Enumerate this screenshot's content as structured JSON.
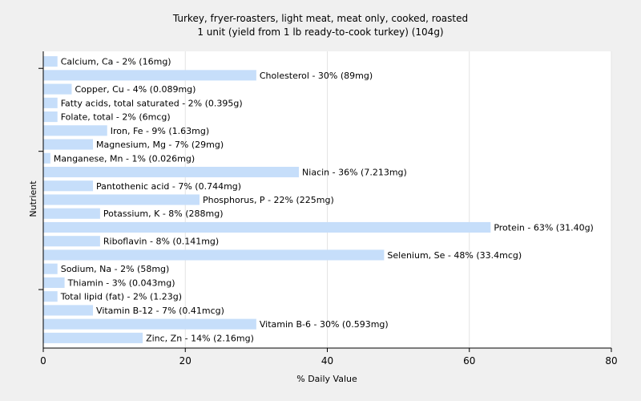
{
  "chart_data": {
    "type": "bar",
    "orientation": "horizontal",
    "title": "Turkey, fryer-roasters, light meat, meat only, cooked, roasted",
    "subtitle": "1 unit (yield from 1 lb ready-to-cook turkey) (104g)",
    "xlabel": "% Daily Value",
    "ylabel": "Nutrient",
    "xlim": [
      0,
      80
    ],
    "xticks": [
      0,
      20,
      40,
      60,
      80
    ],
    "grid": true,
    "bar_color": "#c6defa",
    "categories": [
      "Calcium, Ca",
      "Cholesterol",
      "Copper, Cu",
      "Fatty acids, total saturated",
      "Folate, total",
      "Iron, Fe",
      "Magnesium, Mg",
      "Manganese, Mn",
      "Niacin",
      "Pantothenic acid",
      "Phosphorus, P",
      "Potassium, K",
      "Protein",
      "Riboflavin",
      "Selenium, Se",
      "Sodium, Na",
      "Thiamin",
      "Total lipid (fat)",
      "Vitamin B-12",
      "Vitamin B-6",
      "Zinc, Zn"
    ],
    "values": [
      2,
      30,
      4,
      2,
      2,
      9,
      7,
      1,
      36,
      7,
      22,
      8,
      63,
      8,
      48,
      2,
      3,
      2,
      7,
      30,
      14
    ],
    "labels": [
      "Calcium, Ca - 2% (16mg)",
      "Cholesterol - 30% (89mg)",
      "Copper, Cu - 4% (0.089mg)",
      "Fatty acids, total saturated - 2% (0.395g)",
      "Folate, total - 2% (6mcg)",
      "Iron, Fe - 9% (1.63mg)",
      "Magnesium, Mg - 7% (29mg)",
      "Manganese, Mn - 1% (0.026mg)",
      "Niacin - 36% (7.213mg)",
      "Pantothenic acid - 7% (0.744mg)",
      "Phosphorus, P - 22% (225mg)",
      "Potassium, K - 8% (288mg)",
      "Protein - 63% (31.40g)",
      "Riboflavin - 8% (0.141mg)",
      "Selenium, Se - 48% (33.4mcg)",
      "Sodium, Na - 2% (58mg)",
      "Thiamin - 3% (0.043mg)",
      "Total lipid (fat) - 2% (1.23g)",
      "Vitamin B-12 - 7% (0.41mcg)",
      "Vitamin B-6 - 30% (0.593mg)",
      "Zinc, Zn - 14% (2.16mg)"
    ]
  }
}
